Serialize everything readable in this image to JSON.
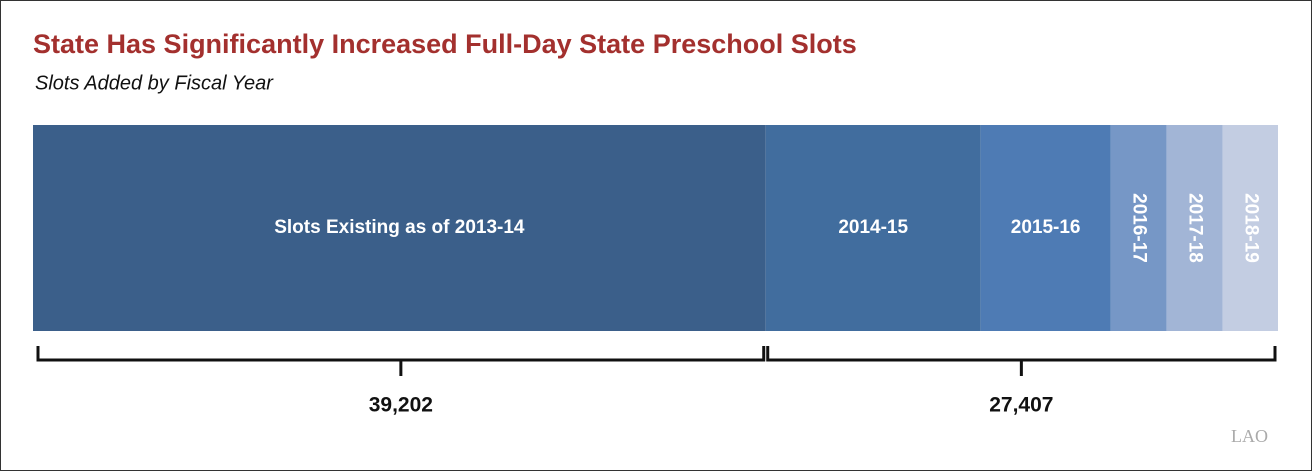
{
  "chart_data": {
    "type": "stacked-bar",
    "title": "State Has Significantly Increased Full-Day State Preschool Slots",
    "subtitle": "Slots Added by Fiscal Year",
    "groups": [
      {
        "value": 39202,
        "label": "39,202",
        "series": [
          {
            "name": "Slots Existing as of 2013-14",
            "color": "#3b5f8a",
            "value": 39202
          }
        ]
      },
      {
        "value": 27407,
        "label": "27,407",
        "series": [
          {
            "name": "2014-15",
            "color": "#416d9e",
            "value": 11500
          },
          {
            "name": "2015-16",
            "color": "#4e7bb4",
            "value": 6950
          },
          {
            "name": "2016-17",
            "color": "#7697c6",
            "value": 3000
          },
          {
            "name": "2017-18",
            "color": "#a2b5d6",
            "value": 3000
          },
          {
            "name": "2018-19",
            "color": "#c3cde2",
            "value": 2957
          }
        ]
      }
    ],
    "logo": "LAO"
  }
}
